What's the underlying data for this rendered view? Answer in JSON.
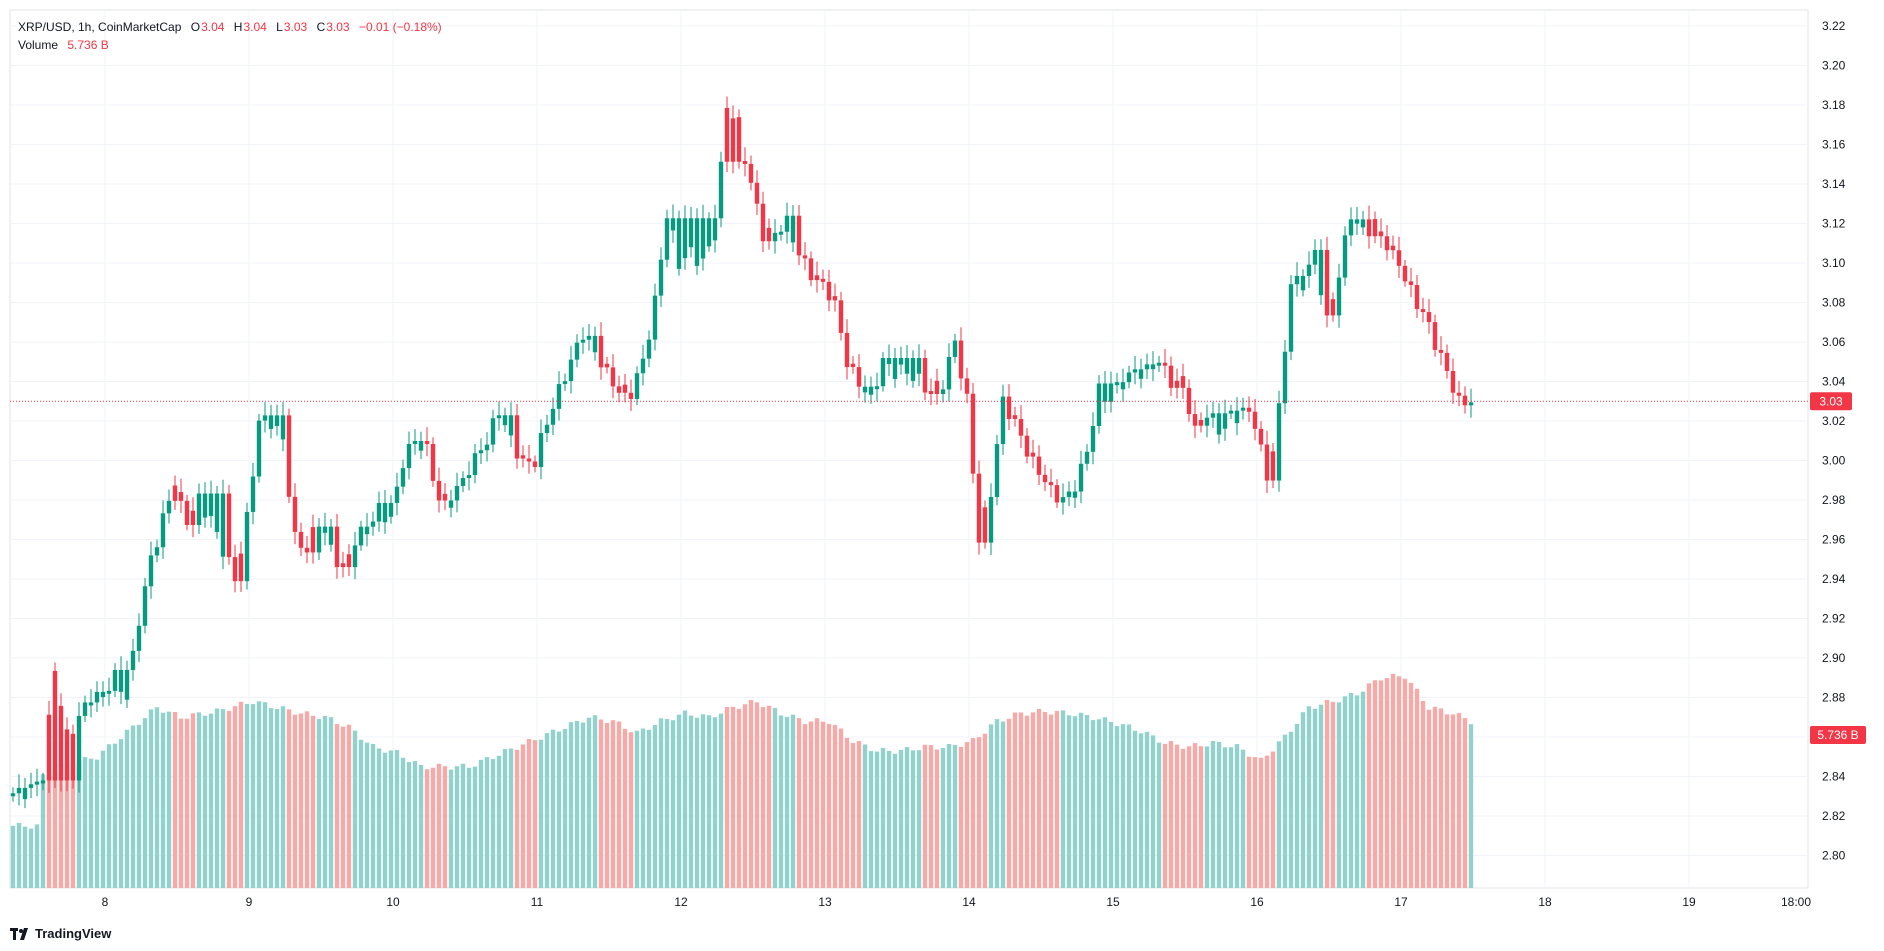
{
  "header": {
    "symbol": "XRP/USD, 1h, CoinMarketCap",
    "o_label": "O",
    "o_value": "3.04",
    "h_label": "H",
    "h_value": "3.04",
    "l_label": "L",
    "l_value": "3.03",
    "c_label": "C",
    "c_value": "3.03",
    "change": "−0.01 (−0.18%)",
    "volume_label": "Volume",
    "volume_value": "5.736 B"
  },
  "price_axis": {
    "ticks": [
      "3.22",
      "3.20",
      "3.18",
      "3.16",
      "3.14",
      "3.12",
      "3.10",
      "3.08",
      "3.06",
      "3.04",
      "3.02",
      "3.00",
      "2.98",
      "2.96",
      "2.94",
      "2.92",
      "2.90",
      "2.88",
      "2.86",
      "2.84",
      "2.82",
      "2.80"
    ],
    "current_price_label": "3.03",
    "current_volume_label": "5.736 B"
  },
  "time_axis": {
    "ticks": [
      "8",
      "9",
      "10",
      "11",
      "12",
      "13",
      "14",
      "15",
      "16",
      "17",
      "18",
      "19",
      "18:00"
    ]
  },
  "branding": {
    "name": "TradingView",
    "icon": "tradingview-logo-icon"
  },
  "colors": {
    "up": "#089981",
    "down": "#f23645",
    "up_volume": "#92d2cc",
    "down_volume": "#f7a9a7",
    "grid": "#f0f3fa"
  },
  "chart_data": {
    "type": "candlestick",
    "interval": "1h",
    "ylim": [
      2.785,
      3.225
    ],
    "current_price": 3.03,
    "x_ticks": [
      "8",
      "9",
      "10",
      "11",
      "12",
      "13",
      "14",
      "15",
      "16",
      "17",
      "18",
      "19",
      "18:00"
    ],
    "price_anchors": [
      [
        0,
        2.83
      ],
      [
        4,
        2.835
      ],
      [
        5,
        2.84
      ],
      [
        7,
        2.895
      ],
      [
        9,
        2.86
      ],
      [
        11,
        2.87
      ],
      [
        13,
        2.88
      ],
      [
        15,
        2.88
      ],
      [
        17,
        2.89
      ],
      [
        19,
        2.88
      ],
      [
        21,
        2.92
      ],
      [
        23,
        2.95
      ],
      [
        25,
        2.97
      ],
      [
        27,
        2.99
      ],
      [
        29,
        2.97
      ],
      [
        31,
        2.98
      ],
      [
        33,
        2.97
      ],
      [
        35,
        2.955
      ],
      [
        37,
        2.94
      ],
      [
        39,
        2.97
      ],
      [
        41,
        3.02
      ],
      [
        43,
        3.02
      ],
      [
        45,
        3.01
      ],
      [
        47,
        2.96
      ],
      [
        49,
        2.955
      ],
      [
        51,
        2.97
      ],
      [
        53,
        2.955
      ],
      [
        55,
        2.945
      ],
      [
        57,
        2.96
      ],
      [
        59,
        2.965
      ],
      [
        61,
        2.975
      ],
      [
        63,
        2.97
      ],
      [
        65,
        3.0
      ],
      [
        67,
        3.01
      ],
      [
        69,
        3.005
      ],
      [
        71,
        2.98
      ],
      [
        73,
        2.98
      ],
      [
        75,
        2.99
      ],
      [
        77,
        3.0
      ],
      [
        79,
        3.01
      ],
      [
        81,
        3.025
      ],
      [
        83,
        3.01
      ],
      [
        85,
        3.0
      ],
      [
        87,
        3.0
      ],
      [
        89,
        3.02
      ],
      [
        91,
        3.035
      ],
      [
        93,
        3.05
      ],
      [
        95,
        3.065
      ],
      [
        97,
        3.055
      ],
      [
        99,
        3.045
      ],
      [
        101,
        3.035
      ],
      [
        103,
        3.035
      ],
      [
        105,
        3.05
      ],
      [
        107,
        3.08
      ],
      [
        109,
        3.125
      ],
      [
        111,
        3.1
      ],
      [
        113,
        3.105
      ],
      [
        115,
        3.1
      ],
      [
        117,
        3.115
      ],
      [
        119,
        3.18
      ],
      [
        121,
        3.17
      ],
      [
        123,
        3.14
      ],
      [
        125,
        3.115
      ],
      [
        127,
        3.115
      ],
      [
        129,
        3.12
      ],
      [
        131,
        3.105
      ],
      [
        133,
        3.095
      ],
      [
        135,
        3.09
      ],
      [
        137,
        3.08
      ],
      [
        139,
        3.05
      ],
      [
        141,
        3.04
      ],
      [
        143,
        3.03
      ],
      [
        145,
        3.05
      ],
      [
        147,
        3.045
      ],
      [
        149,
        3.045
      ],
      [
        151,
        3.04
      ],
      [
        153,
        3.035
      ],
      [
        155,
        3.04
      ],
      [
        157,
        3.06
      ],
      [
        159,
        3.03
      ],
      [
        161,
        2.96
      ],
      [
        163,
        2.985
      ],
      [
        165,
        3.03
      ],
      [
        167,
        3.02
      ],
      [
        169,
        3.005
      ],
      [
        171,
        2.995
      ],
      [
        173,
        2.985
      ],
      [
        175,
        2.98
      ],
      [
        177,
        2.985
      ],
      [
        179,
        3.005
      ],
      [
        181,
        3.035
      ],
      [
        183,
        3.03
      ],
      [
        185,
        3.04
      ],
      [
        187,
        3.045
      ],
      [
        189,
        3.045
      ],
      [
        191,
        3.05
      ],
      [
        193,
        3.04
      ],
      [
        195,
        3.04
      ],
      [
        197,
        3.015
      ],
      [
        199,
        3.025
      ],
      [
        201,
        3.015
      ],
      [
        203,
        3.02
      ],
      [
        205,
        3.025
      ],
      [
        207,
        3.02
      ],
      [
        209,
        2.99
      ],
      [
        211,
        3.025
      ],
      [
        213,
        3.09
      ],
      [
        215,
        3.09
      ],
      [
        217,
        3.105
      ],
      [
        219,
        3.07
      ],
      [
        221,
        3.095
      ],
      [
        223,
        3.125
      ],
      [
        225,
        3.115
      ],
      [
        227,
        3.12
      ],
      [
        229,
        3.11
      ],
      [
        231,
        3.1
      ],
      [
        233,
        3.085
      ],
      [
        235,
        3.075
      ],
      [
        237,
        3.06
      ],
      [
        239,
        3.045
      ],
      [
        241,
        3.03
      ],
      [
        243,
        3.03
      ]
    ],
    "volume_anchors": [
      [
        0,
        2.815
      ],
      [
        4,
        2.815
      ],
      [
        5,
        2.84
      ],
      [
        8,
        2.845
      ],
      [
        14,
        2.85
      ],
      [
        18,
        2.86
      ],
      [
        22,
        2.87
      ],
      [
        24,
        2.875
      ],
      [
        28,
        2.87
      ],
      [
        34,
        2.873
      ],
      [
        40,
        2.878
      ],
      [
        44,
        2.875
      ],
      [
        48,
        2.872
      ],
      [
        52,
        2.87
      ],
      [
        56,
        2.865
      ],
      [
        60,
        2.855
      ],
      [
        64,
        2.852
      ],
      [
        68,
        2.845
      ],
      [
        72,
        2.845
      ],
      [
        76,
        2.845
      ],
      [
        80,
        2.85
      ],
      [
        84,
        2.855
      ],
      [
        88,
        2.86
      ],
      [
        92,
        2.865
      ],
      [
        96,
        2.87
      ],
      [
        100,
        2.868
      ],
      [
        104,
        2.862
      ],
      [
        108,
        2.868
      ],
      [
        112,
        2.872
      ],
      [
        116,
        2.87
      ],
      [
        120,
        2.875
      ],
      [
        124,
        2.878
      ],
      [
        128,
        2.872
      ],
      [
        132,
        2.868
      ],
      [
        136,
        2.868
      ],
      [
        140,
        2.858
      ],
      [
        144,
        2.853
      ],
      [
        148,
        2.853
      ],
      [
        152,
        2.855
      ],
      [
        156,
        2.855
      ],
      [
        160,
        2.858
      ],
      [
        164,
        2.868
      ],
      [
        168,
        2.872
      ],
      [
        172,
        2.873
      ],
      [
        176,
        2.872
      ],
      [
        180,
        2.87
      ],
      [
        184,
        2.867
      ],
      [
        188,
        2.863
      ],
      [
        192,
        2.857
      ],
      [
        196,
        2.855
      ],
      [
        200,
        2.857
      ],
      [
        204,
        2.855
      ],
      [
        208,
        2.848
      ],
      [
        212,
        2.86
      ],
      [
        216,
        2.875
      ],
      [
        220,
        2.878
      ],
      [
        224,
        2.882
      ],
      [
        228,
        2.89
      ],
      [
        232,
        2.891
      ],
      [
        236,
        2.875
      ],
      [
        240,
        2.872
      ],
      [
        243,
        2.868
      ]
    ],
    "down_candle_ranges": [
      [
        6,
        10
      ],
      [
        27,
        30
      ],
      [
        36,
        38
      ],
      [
        46,
        50
      ],
      [
        54,
        56
      ],
      [
        69,
        72
      ],
      [
        84,
        87
      ],
      [
        98,
        103
      ],
      [
        119,
        126
      ],
      [
        131,
        141
      ],
      [
        152,
        154
      ],
      [
        158,
        162
      ],
      [
        166,
        174
      ],
      [
        192,
        198
      ],
      [
        206,
        210
      ],
      [
        219,
        220
      ],
      [
        226,
        227
      ],
      [
        228,
        242
      ]
    ],
    "axis_price_ticks": [
      3.22,
      3.2,
      3.18,
      3.16,
      3.14,
      3.12,
      3.1,
      3.08,
      3.06,
      3.04,
      3.02,
      3.0,
      2.98,
      2.96,
      2.94,
      2.92,
      2.9,
      2.88,
      2.86,
      2.84,
      2.82,
      2.8
    ],
    "last_volume": 5.736
  }
}
